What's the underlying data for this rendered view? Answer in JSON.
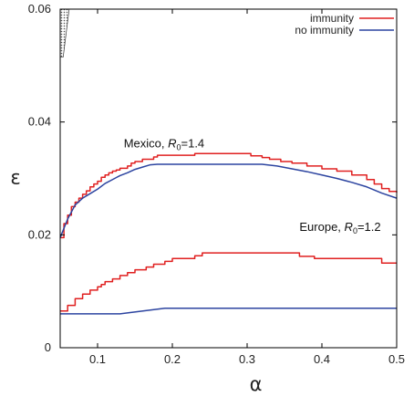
{
  "chart_data": {
    "type": "line",
    "xlabel": "α",
    "ylabel": "ε",
    "xlim": [
      0.05,
      0.5
    ],
    "ylim": [
      0,
      0.06
    ],
    "x_ticks": [
      0.1,
      0.2,
      0.3,
      0.4,
      0.5
    ],
    "x_tick_labels": [
      "0.1",
      "0.2",
      "0.3",
      "0.4",
      "0.5"
    ],
    "y_ticks": [
      0,
      0.02,
      0.04,
      0.06
    ],
    "y_tick_labels": [
      "0",
      "0.02",
      "0.04",
      "0.06"
    ],
    "legend": {
      "placement": "top-right",
      "entries": [
        {
          "label": "immunity",
          "color": "#e02020"
        },
        {
          "label": "no immunity",
          "color": "#2c44a0"
        }
      ]
    },
    "annotations": [
      {
        "text_main": "Mexico, ",
        "text_r": "R",
        "text_sub": "0",
        "text_val": "=1.4",
        "x": 0.135,
        "y": 0.0355
      },
      {
        "text_main": "Europe, ",
        "text_r": "R",
        "text_sub": "0",
        "text_val": "=1.2",
        "x": 0.37,
        "y": 0.0207
      }
    ],
    "hatched_region": {
      "label": "",
      "polygon": [
        [
          0.05,
          0.06
        ],
        [
          0.05,
          0.0515
        ],
        [
          0.054,
          0.0515
        ],
        [
          0.062,
          0.06
        ]
      ]
    },
    "series": [
      {
        "name": "immunity",
        "group": "Mexico",
        "color": "#e02020",
        "step": true,
        "points": [
          [
            0.05,
            0.0195
          ],
          [
            0.055,
            0.022
          ],
          [
            0.06,
            0.0235
          ],
          [
            0.065,
            0.025
          ],
          [
            0.07,
            0.0258
          ],
          [
            0.075,
            0.0265
          ],
          [
            0.08,
            0.0272
          ],
          [
            0.085,
            0.0278
          ],
          [
            0.09,
            0.0285
          ],
          [
            0.095,
            0.029
          ],
          [
            0.1,
            0.0295
          ],
          [
            0.105,
            0.0302
          ],
          [
            0.11,
            0.0306
          ],
          [
            0.115,
            0.031
          ],
          [
            0.12,
            0.0313
          ],
          [
            0.125,
            0.0315
          ],
          [
            0.13,
            0.0318
          ],
          [
            0.14,
            0.0322
          ],
          [
            0.145,
            0.0327
          ],
          [
            0.15,
            0.033
          ],
          [
            0.16,
            0.0334
          ],
          [
            0.175,
            0.0338
          ],
          [
            0.18,
            0.0341
          ],
          [
            0.23,
            0.0344
          ],
          [
            0.235,
            0.0344
          ],
          [
            0.3,
            0.0344
          ],
          [
            0.305,
            0.034
          ],
          [
            0.32,
            0.0337
          ],
          [
            0.33,
            0.0334
          ],
          [
            0.345,
            0.033
          ],
          [
            0.36,
            0.0327
          ],
          [
            0.38,
            0.0322
          ],
          [
            0.4,
            0.0317
          ],
          [
            0.42,
            0.0313
          ],
          [
            0.44,
            0.0306
          ],
          [
            0.46,
            0.0298
          ],
          [
            0.47,
            0.029
          ],
          [
            0.48,
            0.0282
          ],
          [
            0.49,
            0.0277
          ],
          [
            0.5,
            0.0275
          ]
        ]
      },
      {
        "name": "no immunity",
        "group": "Mexico",
        "color": "#2c44a0",
        "step": false,
        "points": [
          [
            0.05,
            0.0195
          ],
          [
            0.06,
            0.0228
          ],
          [
            0.07,
            0.0253
          ],
          [
            0.08,
            0.0265
          ],
          [
            0.09,
            0.0273
          ],
          [
            0.1,
            0.0281
          ],
          [
            0.11,
            0.0291
          ],
          [
            0.12,
            0.0298
          ],
          [
            0.13,
            0.0305
          ],
          [
            0.14,
            0.031
          ],
          [
            0.15,
            0.0316
          ],
          [
            0.16,
            0.032
          ],
          [
            0.17,
            0.0324
          ],
          [
            0.18,
            0.0325
          ],
          [
            0.2,
            0.0325
          ],
          [
            0.25,
            0.0325
          ],
          [
            0.3,
            0.0325
          ],
          [
            0.32,
            0.0325
          ],
          [
            0.34,
            0.0322
          ],
          [
            0.36,
            0.0317
          ],
          [
            0.38,
            0.0312
          ],
          [
            0.4,
            0.0306
          ],
          [
            0.42,
            0.03
          ],
          [
            0.44,
            0.0293
          ],
          [
            0.46,
            0.0285
          ],
          [
            0.48,
            0.0274
          ],
          [
            0.5,
            0.0265
          ]
        ]
      },
      {
        "name": "immunity",
        "group": "Europe",
        "color": "#e02020",
        "step": true,
        "points": [
          [
            0.05,
            0.0065
          ],
          [
            0.06,
            0.0075
          ],
          [
            0.07,
            0.0087
          ],
          [
            0.08,
            0.0095
          ],
          [
            0.09,
            0.0102
          ],
          [
            0.1,
            0.0108
          ],
          [
            0.105,
            0.0112
          ],
          [
            0.11,
            0.0117
          ],
          [
            0.12,
            0.0122
          ],
          [
            0.13,
            0.0128
          ],
          [
            0.14,
            0.0133
          ],
          [
            0.15,
            0.0138
          ],
          [
            0.165,
            0.0143
          ],
          [
            0.175,
            0.0148
          ],
          [
            0.19,
            0.0153
          ],
          [
            0.2,
            0.0158
          ],
          [
            0.23,
            0.0163
          ],
          [
            0.24,
            0.0168
          ],
          [
            0.26,
            0.0168
          ],
          [
            0.3,
            0.0168
          ],
          [
            0.35,
            0.0168
          ],
          [
            0.36,
            0.0168
          ],
          [
            0.37,
            0.0162
          ],
          [
            0.39,
            0.0158
          ],
          [
            0.47,
            0.0158
          ],
          [
            0.48,
            0.015
          ],
          [
            0.5,
            0.015
          ]
        ]
      },
      {
        "name": "no immunity",
        "group": "Europe",
        "color": "#2c44a0",
        "step": false,
        "points": [
          [
            0.05,
            0.006
          ],
          [
            0.13,
            0.006
          ],
          [
            0.19,
            0.007
          ],
          [
            0.3,
            0.007
          ],
          [
            0.5,
            0.007
          ]
        ]
      }
    ]
  }
}
